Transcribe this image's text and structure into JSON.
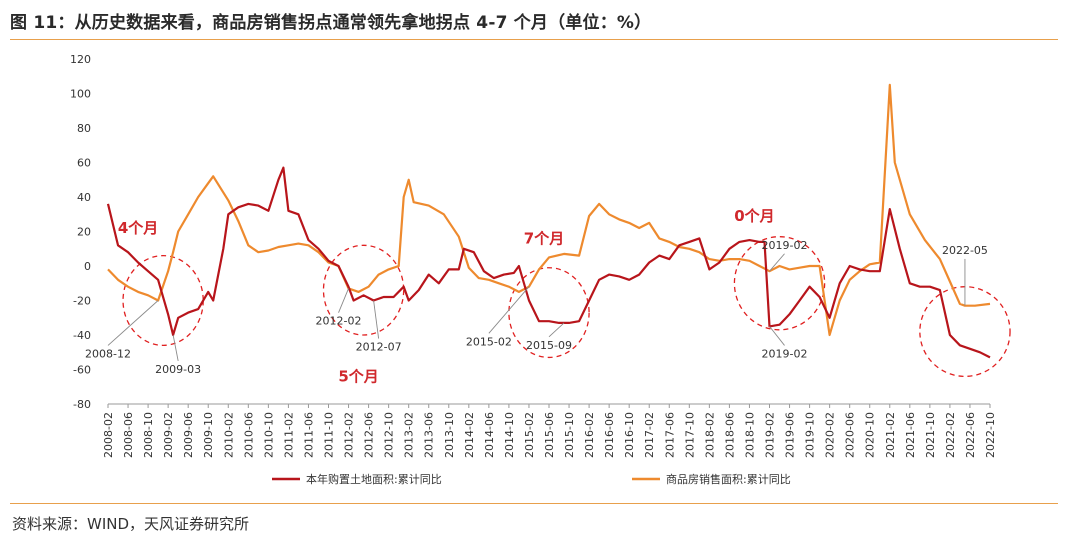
{
  "header": {
    "title": "图 11：从历史数据来看，商品房销售拐点通常领先拿地拐点 4-7 个月（单位：%）"
  },
  "footer": {
    "source": "资料来源：WIND，天风证券研究所"
  },
  "colors": {
    "land": "#b8151b",
    "sales": "#ee8a2e",
    "circle": "#e02020",
    "lag_text": "#d0282c",
    "rule": "#e8a04c"
  },
  "chart_data": {
    "type": "line",
    "title": "",
    "xlabel": "",
    "ylabel": "",
    "ylim": [
      -80,
      120
    ],
    "yticks": [
      120,
      100,
      80,
      60,
      40,
      20,
      0,
      -20,
      -40,
      -60,
      -80
    ],
    "xticks": [
      "2008-02",
      "2008-06",
      "2008-10",
      "2009-02",
      "2009-06",
      "2009-10",
      "2010-02",
      "2010-06",
      "2010-10",
      "2011-02",
      "2011-06",
      "2011-10",
      "2012-02",
      "2012-06",
      "2012-10",
      "2013-02",
      "2013-06",
      "2013-10",
      "2014-02",
      "2014-06",
      "2014-10",
      "2015-02",
      "2015-06",
      "2015-10",
      "2016-02",
      "2016-06",
      "2016-10",
      "2017-02",
      "2017-06",
      "2017-10",
      "2018-02",
      "2018-06",
      "2018-10",
      "2019-02",
      "2019-06",
      "2019-10",
      "2020-02",
      "2020-06",
      "2020-10",
      "2021-02",
      "2021-06",
      "2021-10",
      "2022-02",
      "2022-06",
      "2022-10"
    ],
    "legend": {
      "position": "bottom"
    },
    "series": [
      {
        "name": "本年购置土地面积:累计同比",
        "color": "#b8151b",
        "points": [
          [
            "2008-02",
            36
          ],
          [
            "2008-04",
            12
          ],
          [
            "2008-06",
            8
          ],
          [
            "2008-08",
            2
          ],
          [
            "2008-10",
            -3
          ],
          [
            "2008-12",
            -8
          ],
          [
            "2009-02",
            -28
          ],
          [
            "2009-03",
            -40
          ],
          [
            "2009-04",
            -30
          ],
          [
            "2009-06",
            -27
          ],
          [
            "2009-08",
            -25
          ],
          [
            "2009-10",
            -15
          ],
          [
            "2009-11",
            -20
          ],
          [
            "2010-01",
            10
          ],
          [
            "2010-02",
            30
          ],
          [
            "2010-04",
            34
          ],
          [
            "2010-06",
            36
          ],
          [
            "2010-08",
            35
          ],
          [
            "2010-10",
            32
          ],
          [
            "2010-12",
            50
          ],
          [
            "2011-01",
            57
          ],
          [
            "2011-02",
            32
          ],
          [
            "2011-04",
            30
          ],
          [
            "2011-06",
            15
          ],
          [
            "2011-08",
            10
          ],
          [
            "2011-10",
            3
          ],
          [
            "2011-12",
            0
          ],
          [
            "2012-02",
            -12
          ],
          [
            "2012-03",
            -20
          ],
          [
            "2012-05",
            -17
          ],
          [
            "2012-07",
            -20
          ],
          [
            "2012-09",
            -18
          ],
          [
            "2012-11",
            -18
          ],
          [
            "2013-01",
            -12
          ],
          [
            "2013-02",
            -20
          ],
          [
            "2013-04",
            -14
          ],
          [
            "2013-06",
            -5
          ],
          [
            "2013-08",
            -10
          ],
          [
            "2013-10",
            -2
          ],
          [
            "2013-12",
            -2
          ],
          [
            "2014-01",
            10
          ],
          [
            "2014-03",
            8
          ],
          [
            "2014-05",
            -3
          ],
          [
            "2014-07",
            -7
          ],
          [
            "2014-09",
            -5
          ],
          [
            "2014-11",
            -4
          ],
          [
            "2014-12",
            0
          ],
          [
            "2015-02",
            -20
          ],
          [
            "2015-04",
            -32
          ],
          [
            "2015-06",
            -32
          ],
          [
            "2015-08",
            -33
          ],
          [
            "2015-10",
            -33
          ],
          [
            "2015-12",
            -32
          ],
          [
            "2016-02",
            -20
          ],
          [
            "2016-04",
            -8
          ],
          [
            "2016-06",
            -5
          ],
          [
            "2016-08",
            -6
          ],
          [
            "2016-10",
            -8
          ],
          [
            "2016-12",
            -5
          ],
          [
            "2017-02",
            2
          ],
          [
            "2017-04",
            6
          ],
          [
            "2017-06",
            4
          ],
          [
            "2017-08",
            12
          ],
          [
            "2017-10",
            14
          ],
          [
            "2017-12",
            16
          ],
          [
            "2018-02",
            -2
          ],
          [
            "2018-04",
            2
          ],
          [
            "2018-06",
            10
          ],
          [
            "2018-08",
            14
          ],
          [
            "2018-10",
            15
          ],
          [
            "2018-12",
            14
          ],
          [
            "2019-01",
            14
          ],
          [
            "2019-02",
            -35
          ],
          [
            "2019-04",
            -34
          ],
          [
            "2019-06",
            -28
          ],
          [
            "2019-08",
            -20
          ],
          [
            "2019-10",
            -12
          ],
          [
            "2019-12",
            -18
          ],
          [
            "2020-02",
            -30
          ],
          [
            "2020-04",
            -10
          ],
          [
            "2020-06",
            0
          ],
          [
            "2020-08",
            -2
          ],
          [
            "2020-10",
            -3
          ],
          [
            "2020-12",
            -3
          ],
          [
            "2021-02",
            33
          ],
          [
            "2021-04",
            10
          ],
          [
            "2021-06",
            -10
          ],
          [
            "2021-08",
            -12
          ],
          [
            "2021-10",
            -12
          ],
          [
            "2021-12",
            -14
          ],
          [
            "2022-02",
            -40
          ],
          [
            "2022-04",
            -46
          ],
          [
            "2022-06",
            -48
          ],
          [
            "2022-08",
            -50
          ],
          [
            "2022-10",
            -53
          ]
        ]
      },
      {
        "name": "商品房销售面积:累计同比",
        "color": "#ee8a2e",
        "points": [
          [
            "2008-02",
            -2
          ],
          [
            "2008-04",
            -8
          ],
          [
            "2008-06",
            -12
          ],
          [
            "2008-08",
            -15
          ],
          [
            "2008-10",
            -17
          ],
          [
            "2008-12",
            -20
          ],
          [
            "2009-02",
            -3
          ],
          [
            "2009-03",
            8
          ],
          [
            "2009-04",
            20
          ],
          [
            "2009-06",
            30
          ],
          [
            "2009-08",
            40
          ],
          [
            "2009-10",
            48
          ],
          [
            "2009-11",
            52
          ],
          [
            "2010-02",
            38
          ],
          [
            "2010-04",
            26
          ],
          [
            "2010-06",
            12
          ],
          [
            "2010-08",
            8
          ],
          [
            "2010-10",
            9
          ],
          [
            "2010-12",
            11
          ],
          [
            "2011-02",
            12
          ],
          [
            "2011-04",
            13
          ],
          [
            "2011-06",
            12
          ],
          [
            "2011-08",
            8
          ],
          [
            "2011-10",
            2
          ],
          [
            "2011-12",
            0
          ],
          [
            "2012-02",
            -13
          ],
          [
            "2012-04",
            -15
          ],
          [
            "2012-06",
            -12
          ],
          [
            "2012-08",
            -5
          ],
          [
            "2012-10",
            -2
          ],
          [
            "2012-12",
            0
          ],
          [
            "2013-01",
            40
          ],
          [
            "2013-02",
            50
          ],
          [
            "2013-03",
            37
          ],
          [
            "2013-06",
            35
          ],
          [
            "2013-09",
            30
          ],
          [
            "2013-12",
            17
          ],
          [
            "2014-02",
            -1
          ],
          [
            "2014-04",
            -7
          ],
          [
            "2014-06",
            -8
          ],
          [
            "2014-08",
            -10
          ],
          [
            "2014-10",
            -12
          ],
          [
            "2014-12",
            -15
          ],
          [
            "2015-02",
            -12
          ],
          [
            "2015-04",
            -2
          ],
          [
            "2015-06",
            5
          ],
          [
            "2015-09",
            7
          ],
          [
            "2015-12",
            6
          ],
          [
            "2016-02",
            29
          ],
          [
            "2016-04",
            36
          ],
          [
            "2016-06",
            30
          ],
          [
            "2016-08",
            27
          ],
          [
            "2016-10",
            25
          ],
          [
            "2016-12",
            22
          ],
          [
            "2017-02",
            25
          ],
          [
            "2017-04",
            16
          ],
          [
            "2017-06",
            14
          ],
          [
            "2017-08",
            11
          ],
          [
            "2017-10",
            10
          ],
          [
            "2017-12",
            8
          ],
          [
            "2018-02",
            4
          ],
          [
            "2018-04",
            3
          ],
          [
            "2018-06",
            4
          ],
          [
            "2018-08",
            4
          ],
          [
            "2018-10",
            3
          ],
          [
            "2018-12",
            0
          ],
          [
            "2019-02",
            -3
          ],
          [
            "2019-04",
            0
          ],
          [
            "2019-06",
            -2
          ],
          [
            "2019-08",
            -1
          ],
          [
            "2019-10",
            0
          ],
          [
            "2019-12",
            0
          ],
          [
            "2020-02",
            -40
          ],
          [
            "2020-04",
            -20
          ],
          [
            "2020-06",
            -8
          ],
          [
            "2020-08",
            -3
          ],
          [
            "2020-10",
            1
          ],
          [
            "2020-12",
            2
          ],
          [
            "2021-02",
            105
          ],
          [
            "2021-03",
            60
          ],
          [
            "2021-06",
            30
          ],
          [
            "2021-09",
            15
          ],
          [
            "2021-12",
            4
          ],
          [
            "2022-02",
            -9
          ],
          [
            "2022-04",
            -22
          ],
          [
            "2022-05",
            -23
          ],
          [
            "2022-07",
            -23
          ],
          [
            "2022-10",
            -22
          ]
        ]
      }
    ],
    "annotations": {
      "lags": [
        {
          "text": "4个月",
          "x": "2008-08",
          "y": 19
        },
        {
          "text": "5个月",
          "x": "2012-04",
          "y": -67
        },
        {
          "text": "7个月",
          "x": "2015-05",
          "y": 13
        },
        {
          "text": "0个月",
          "x": "2018-11",
          "y": 26
        }
      ],
      "dates": [
        {
          "text": "2008-12",
          "x": "2008-02",
          "y": -53
        },
        {
          "text": "2009-03",
          "x": "2009-04",
          "y": -62
        },
        {
          "text": "2012-02",
          "x": "2011-12",
          "y": -34
        },
        {
          "text": "2012-07",
          "x": "2012-08",
          "y": -49
        },
        {
          "text": "2015-02",
          "x": "2014-06",
          "y": -46
        },
        {
          "text": "2015-09",
          "x": "2015-06",
          "y": -48
        },
        {
          "text": "2019-02",
          "x": "2019-05",
          "y": 10
        },
        {
          "text": "2019-02",
          "x": "2019-05",
          "y": -53
        },
        {
          "text": "2022-05",
          "x": "2022-05",
          "y": 7
        }
      ],
      "circles": [
        {
          "cx": "2009-01",
          "cy": -20,
          "rx_months": 8,
          "ry": 26
        },
        {
          "cx": "2012-05",
          "cy": -14,
          "rx_months": 8,
          "ry": 26
        },
        {
          "cx": "2015-06",
          "cy": -27,
          "rx_months": 8,
          "ry": 26
        },
        {
          "cx": "2019-04",
          "cy": -10,
          "rx_months": 9,
          "ry": 27
        },
        {
          "cx": "2022-05",
          "cy": -38,
          "rx_months": 9,
          "ry": 26
        }
      ]
    }
  }
}
